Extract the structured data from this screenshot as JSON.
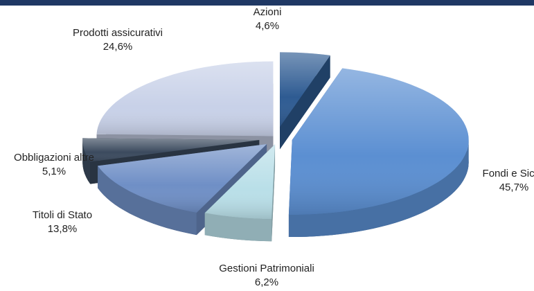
{
  "chart_data": {
    "type": "pie",
    "categories": [
      "Azioni",
      "Fondi e Sicav",
      "Gestioni Patrimoniali",
      "Titoli di Stato",
      "Obbligazioni altre",
      "Prodotti assicurativi"
    ],
    "values": [
      4.6,
      45.7,
      6.2,
      13.8,
      5.1,
      24.6
    ],
    "value_labels": [
      "4,6%",
      "45,7%",
      "6,2%",
      "13,8%",
      "5,1%",
      "24,6%"
    ],
    "colors": [
      "#2e5b92",
      "#5b8fd2",
      "#b9dfe8",
      "#6f8fc6",
      "#3b4a5e",
      "#c8d1e8"
    ]
  }
}
